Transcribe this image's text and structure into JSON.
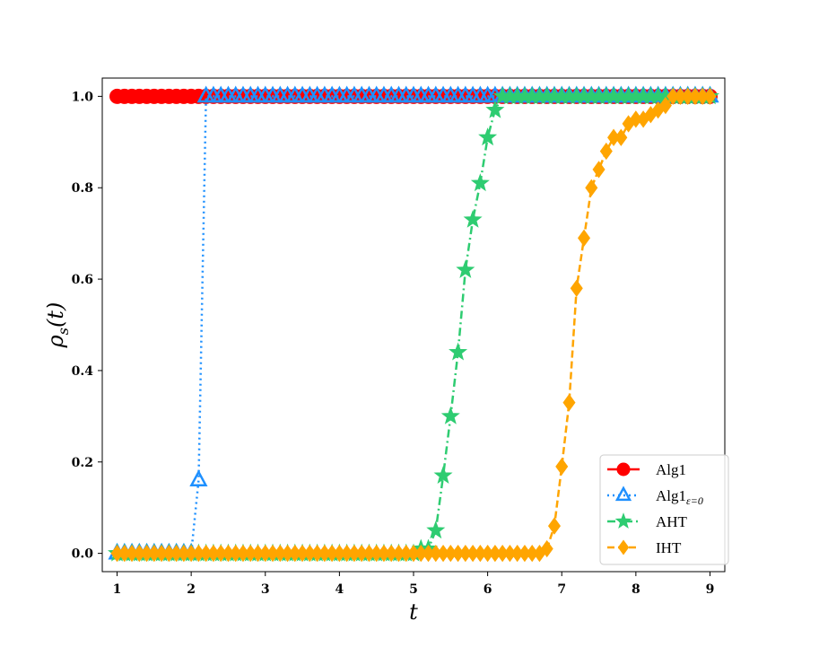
{
  "chart_data": {
    "type": "line",
    "xlabel": "t",
    "ylabel": "ρs(t)",
    "xlim": [
      0.8,
      9.2
    ],
    "ylim": [
      -0.04,
      1.04
    ],
    "xticks": [
      1,
      2,
      3,
      4,
      5,
      6,
      7,
      8,
      9
    ],
    "yticks": [
      "0.0",
      "0.2",
      "0.4",
      "0.6",
      "0.8",
      "1.0"
    ],
    "legend_position": "bottom-right",
    "series": [
      {
        "name": "Alg1",
        "color": "#ff0000",
        "marker": "circle",
        "linestyle": "solid",
        "x": [
          1.0,
          1.1,
          1.2,
          1.3,
          1.4,
          1.5,
          1.6,
          1.7,
          1.8,
          1.9,
          2.0,
          2.1,
          2.2,
          2.3,
          2.4,
          2.5,
          2.6,
          2.7,
          2.8,
          2.9,
          3.0,
          3.1,
          3.2,
          3.3,
          3.4,
          3.5,
          3.6,
          3.7,
          3.8,
          3.9,
          4.0,
          4.1,
          4.2,
          4.3,
          4.4,
          4.5,
          4.6,
          4.7,
          4.8,
          4.9,
          5.0,
          5.1,
          5.2,
          5.3,
          5.4,
          5.5,
          5.6,
          5.7,
          5.8,
          5.9,
          6.0,
          6.1,
          6.2,
          6.3,
          6.4,
          6.5,
          6.6,
          6.7,
          6.8,
          6.9,
          7.0,
          7.1,
          7.2,
          7.3,
          7.4,
          7.5,
          7.6,
          7.7,
          7.8,
          7.9,
          8.0,
          8.1,
          8.2,
          8.3,
          8.4,
          8.5,
          8.6,
          8.7,
          8.8,
          8.9,
          9.0
        ],
        "y": [
          1,
          1,
          1,
          1,
          1,
          1,
          1,
          1,
          1,
          1,
          1,
          1,
          1,
          1,
          1,
          1,
          1,
          1,
          1,
          1,
          1,
          1,
          1,
          1,
          1,
          1,
          1,
          1,
          1,
          1,
          1,
          1,
          1,
          1,
          1,
          1,
          1,
          1,
          1,
          1,
          1,
          1,
          1,
          1,
          1,
          1,
          1,
          1,
          1,
          1,
          1,
          1,
          1,
          1,
          1,
          1,
          1,
          1,
          1,
          1,
          1,
          1,
          1,
          1,
          1,
          1,
          1,
          1,
          1,
          1,
          1,
          1,
          1,
          1,
          1,
          1,
          1,
          1,
          1,
          1,
          1
        ]
      },
      {
        "name": "Alg1",
        "name_sub": "ε=0",
        "color": "#1e90ff",
        "marker": "triangle",
        "linestyle": "dotted",
        "x": [
          1.0,
          1.1,
          1.2,
          1.3,
          1.4,
          1.5,
          1.6,
          1.7,
          1.8,
          1.9,
          2.0,
          2.1,
          2.2,
          2.3,
          2.4,
          2.5,
          2.6,
          2.7,
          2.8,
          2.9,
          3.0,
          3.1,
          3.2,
          3.3,
          3.4,
          3.5,
          3.6,
          3.7,
          3.8,
          3.9,
          4.0,
          4.1,
          4.2,
          4.3,
          4.4,
          4.5,
          4.6,
          4.7,
          4.8,
          4.9,
          5.0,
          5.1,
          5.2,
          5.3,
          5.4,
          5.5,
          5.6,
          5.7,
          5.8,
          5.9,
          6.0,
          6.1,
          6.2,
          6.3,
          6.4,
          6.5,
          6.6,
          6.7,
          6.8,
          6.9,
          7.0,
          7.1,
          7.2,
          7.3,
          7.4,
          7.5,
          7.6,
          7.7,
          7.8,
          7.9,
          8.0,
          8.1,
          8.2,
          8.3,
          8.4,
          8.5,
          8.6,
          8.7,
          8.8,
          8.9,
          9.0
        ],
        "y": [
          0,
          0,
          0,
          0,
          0,
          0,
          0,
          0,
          0,
          0,
          0,
          0.16,
          1,
          1,
          1,
          1,
          1,
          1,
          1,
          1,
          1,
          1,
          1,
          1,
          1,
          1,
          1,
          1,
          1,
          1,
          1,
          1,
          1,
          1,
          1,
          1,
          1,
          1,
          1,
          1,
          1,
          1,
          1,
          1,
          1,
          1,
          1,
          1,
          1,
          1,
          1,
          1,
          1,
          1,
          1,
          1,
          1,
          1,
          1,
          1,
          1,
          1,
          1,
          1,
          1,
          1,
          1,
          1,
          1,
          1,
          1,
          1,
          1,
          1,
          1,
          1,
          1,
          1,
          1,
          1,
          1
        ]
      },
      {
        "name": "AHT",
        "color": "#2ecc71",
        "marker": "star",
        "linestyle": "dashdot",
        "x": [
          1.0,
          1.1,
          1.2,
          1.3,
          1.4,
          1.5,
          1.6,
          1.7,
          1.8,
          1.9,
          2.0,
          2.1,
          2.2,
          2.3,
          2.4,
          2.5,
          2.6,
          2.7,
          2.8,
          2.9,
          3.0,
          3.1,
          3.2,
          3.3,
          3.4,
          3.5,
          3.6,
          3.7,
          3.8,
          3.9,
          4.0,
          4.1,
          4.2,
          4.3,
          4.4,
          4.5,
          4.6,
          4.7,
          4.8,
          4.9,
          5.0,
          5.1,
          5.2,
          5.3,
          5.4,
          5.5,
          5.6,
          5.7,
          5.8,
          5.9,
          6.0,
          6.1,
          6.2,
          6.3,
          6.4,
          6.5,
          6.6,
          6.7,
          6.8,
          6.9,
          7.0,
          7.1,
          7.2,
          7.3,
          7.4,
          7.5,
          7.6,
          7.7,
          7.8,
          7.9,
          8.0,
          8.1,
          8.2,
          8.3,
          8.4,
          8.5,
          8.6,
          8.7,
          8.8,
          8.9,
          9.0
        ],
        "y": [
          0,
          0,
          0,
          0,
          0,
          0,
          0,
          0,
          0,
          0,
          0,
          0,
          0,
          0,
          0,
          0,
          0,
          0,
          0,
          0,
          0,
          0,
          0,
          0,
          0,
          0,
          0,
          0,
          0,
          0,
          0,
          0,
          0,
          0,
          0,
          0,
          0,
          0,
          0,
          0,
          0,
          0.01,
          0.01,
          0.05,
          0.17,
          0.3,
          0.44,
          0.62,
          0.73,
          0.81,
          0.91,
          0.97,
          1,
          1,
          1,
          1,
          1,
          1,
          1,
          1,
          1,
          1,
          1,
          1,
          1,
          1,
          1,
          1,
          1,
          1,
          1,
          1,
          1,
          1,
          1,
          1,
          1,
          1,
          1,
          1,
          1
        ]
      },
      {
        "name": "IHT",
        "color": "#ffa500",
        "marker": "diamond",
        "linestyle": "dashed",
        "x": [
          1.0,
          1.1,
          1.2,
          1.3,
          1.4,
          1.5,
          1.6,
          1.7,
          1.8,
          1.9,
          2.0,
          2.1,
          2.2,
          2.3,
          2.4,
          2.5,
          2.6,
          2.7,
          2.8,
          2.9,
          3.0,
          3.1,
          3.2,
          3.3,
          3.4,
          3.5,
          3.6,
          3.7,
          3.8,
          3.9,
          4.0,
          4.1,
          4.2,
          4.3,
          4.4,
          4.5,
          4.6,
          4.7,
          4.8,
          4.9,
          5.0,
          5.1,
          5.2,
          5.3,
          5.4,
          5.5,
          5.6,
          5.7,
          5.8,
          5.9,
          6.0,
          6.1,
          6.2,
          6.3,
          6.4,
          6.5,
          6.6,
          6.7,
          6.8,
          6.9,
          7.0,
          7.1,
          7.2,
          7.3,
          7.4,
          7.5,
          7.6,
          7.7,
          7.8,
          7.9,
          8.0,
          8.1,
          8.2,
          8.3,
          8.4,
          8.5,
          8.6,
          8.7,
          8.8,
          8.9,
          9.0
        ],
        "y": [
          0,
          0,
          0,
          0,
          0,
          0,
          0,
          0,
          0,
          0,
          0,
          0,
          0,
          0,
          0,
          0,
          0,
          0,
          0,
          0,
          0,
          0,
          0,
          0,
          0,
          0,
          0,
          0,
          0,
          0,
          0,
          0,
          0,
          0,
          0,
          0,
          0,
          0,
          0,
          0,
          0,
          0,
          0,
          0,
          0,
          0,
          0,
          0,
          0,
          0,
          0,
          0,
          0,
          0,
          0,
          0,
          0,
          0,
          0.01,
          0.06,
          0.19,
          0.33,
          0.58,
          0.69,
          0.8,
          0.84,
          0.88,
          0.91,
          0.91,
          0.94,
          0.95,
          0.95,
          0.96,
          0.97,
          0.98,
          1,
          1,
          1,
          1,
          1,
          1
        ]
      }
    ]
  }
}
